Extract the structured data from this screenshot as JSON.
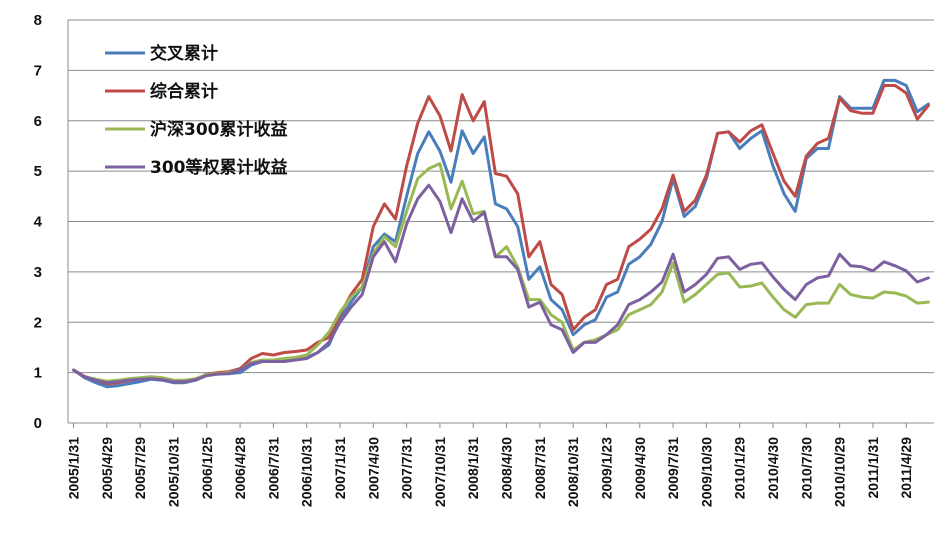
{
  "chart_data": {
    "type": "line",
    "title": "",
    "xlabel": "",
    "ylabel": "",
    "ylim": [
      0,
      8
    ],
    "yticks": [
      0,
      1,
      2,
      3,
      4,
      5,
      6,
      7,
      8
    ],
    "grid": true,
    "legend_position": "top-left",
    "tick_labels": [
      "2005/1/31",
      "2005/4/29",
      "2005/7/29",
      "2005/10/31",
      "2006/1/25",
      "2006/4/28",
      "2006/7/31",
      "2006/10/31",
      "2007/1/31",
      "2007/4/30",
      "2007/7/31",
      "2007/10/31",
      "2008/1/31",
      "2008/4/30",
      "2008/7/31",
      "2008/10/31",
      "2009/1/23",
      "2009/4/30",
      "2009/7/31",
      "2009/10/30",
      "2010/1/29",
      "2010/4/30",
      "2010/7/30",
      "2010/10/29",
      "2011/1/31",
      "2011/4/29"
    ],
    "x": [
      "2005/1",
      "2005/2",
      "2005/3",
      "2005/4",
      "2005/5",
      "2005/6",
      "2005/7",
      "2005/8",
      "2005/9",
      "2005/10",
      "2005/11",
      "2005/12",
      "2006/1",
      "2006/2",
      "2006/3",
      "2006/4",
      "2006/5",
      "2006/6",
      "2006/7",
      "2006/8",
      "2006/9",
      "2006/10",
      "2006/11",
      "2006/12",
      "2007/1",
      "2007/2",
      "2007/3",
      "2007/4",
      "2007/5",
      "2007/6",
      "2007/7",
      "2007/8",
      "2007/9",
      "2007/10",
      "2007/11",
      "2007/12",
      "2008/1",
      "2008/2",
      "2008/3",
      "2008/4",
      "2008/5",
      "2008/6",
      "2008/7",
      "2008/8",
      "2008/9",
      "2008/10",
      "2008/11",
      "2008/12",
      "2009/1",
      "2009/2",
      "2009/3",
      "2009/4",
      "2009/5",
      "2009/6",
      "2009/7",
      "2009/8",
      "2009/9",
      "2009/10",
      "2009/11",
      "2009/12",
      "2010/1",
      "2010/2",
      "2010/3",
      "2010/4",
      "2010/5",
      "2010/6",
      "2010/7",
      "2010/8",
      "2010/9",
      "2010/10",
      "2010/11",
      "2010/12",
      "2011/1",
      "2011/2",
      "2011/3",
      "2011/4",
      "2011/5",
      "2011/6"
    ],
    "series": [
      {
        "name": "交叉累计",
        "color": "#4a7ebb",
        "values": [
          1.05,
          0.9,
          0.8,
          0.72,
          0.74,
          0.78,
          0.82,
          0.87,
          0.85,
          0.8,
          0.8,
          0.85,
          0.95,
          0.98,
          0.98,
          1.0,
          1.15,
          1.22,
          1.25,
          1.25,
          1.28,
          1.3,
          1.4,
          1.55,
          2.05,
          2.4,
          2.7,
          3.5,
          3.75,
          3.6,
          4.5,
          5.35,
          5.78,
          5.4,
          4.78,
          5.8,
          5.35,
          5.68,
          4.35,
          4.25,
          3.9,
          2.85,
          3.1,
          2.45,
          2.25,
          1.75,
          1.95,
          2.05,
          2.5,
          2.6,
          3.15,
          3.3,
          3.55,
          4.0,
          4.85,
          4.1,
          4.3,
          4.85,
          5.75,
          5.78,
          5.45,
          5.65,
          5.8,
          5.1,
          4.55,
          4.2,
          5.25,
          5.45,
          5.45,
          6.48,
          6.25,
          6.25,
          6.25,
          6.8,
          6.8,
          6.7,
          6.18,
          6.33
        ]
      },
      {
        "name": "综合累计",
        "color": "#be4b48",
        "values": [
          1.05,
          0.92,
          0.85,
          0.78,
          0.8,
          0.84,
          0.88,
          0.9,
          0.88,
          0.82,
          0.82,
          0.87,
          0.97,
          1.0,
          1.02,
          1.08,
          1.28,
          1.38,
          1.35,
          1.4,
          1.42,
          1.45,
          1.6,
          1.7,
          2.15,
          2.55,
          2.85,
          3.9,
          4.35,
          4.05,
          5.1,
          5.95,
          6.48,
          6.1,
          5.4,
          6.52,
          6.0,
          6.38,
          4.95,
          4.9,
          4.55,
          3.3,
          3.6,
          2.75,
          2.55,
          1.85,
          2.1,
          2.25,
          2.75,
          2.85,
          3.5,
          3.65,
          3.85,
          4.25,
          4.92,
          4.2,
          4.42,
          4.92,
          5.75,
          5.78,
          5.58,
          5.8,
          5.92,
          5.35,
          4.8,
          4.5,
          5.3,
          5.55,
          5.65,
          6.45,
          6.2,
          6.15,
          6.15,
          6.7,
          6.7,
          6.55,
          6.03,
          6.3
        ]
      },
      {
        "name": "沪深300累计收益",
        "color": "#98b954",
        "values": [
          1.05,
          0.92,
          0.87,
          0.83,
          0.85,
          0.88,
          0.9,
          0.92,
          0.9,
          0.85,
          0.85,
          0.88,
          0.96,
          0.98,
          1.0,
          1.05,
          1.2,
          1.25,
          1.25,
          1.28,
          1.3,
          1.35,
          1.55,
          1.8,
          2.2,
          2.5,
          2.7,
          3.35,
          3.7,
          3.5,
          4.2,
          4.85,
          5.05,
          5.15,
          4.25,
          4.8,
          4.15,
          4.2,
          3.3,
          3.5,
          3.1,
          2.45,
          2.45,
          2.15,
          2.0,
          1.45,
          1.6,
          1.65,
          1.75,
          1.85,
          2.15,
          2.25,
          2.35,
          2.6,
          3.18,
          2.4,
          2.55,
          2.75,
          2.95,
          2.98,
          2.7,
          2.72,
          2.78,
          2.5,
          2.25,
          2.1,
          2.35,
          2.38,
          2.38,
          2.75,
          2.55,
          2.5,
          2.48,
          2.6,
          2.58,
          2.52,
          2.38,
          2.4
        ]
      },
      {
        "name": "300等权累计收益",
        "color": "#7d60a0",
        "values": [
          1.05,
          0.92,
          0.85,
          0.8,
          0.82,
          0.85,
          0.87,
          0.88,
          0.86,
          0.82,
          0.82,
          0.86,
          0.94,
          0.97,
          0.98,
          1.05,
          1.18,
          1.22,
          1.22,
          1.22,
          1.25,
          1.28,
          1.4,
          1.6,
          2.0,
          2.3,
          2.55,
          3.3,
          3.6,
          3.2,
          3.95,
          4.45,
          4.72,
          4.4,
          3.78,
          4.45,
          4.0,
          4.18,
          3.3,
          3.3,
          3.05,
          2.3,
          2.4,
          1.95,
          1.85,
          1.4,
          1.6,
          1.6,
          1.75,
          1.95,
          2.35,
          2.45,
          2.6,
          2.8,
          3.35,
          2.6,
          2.75,
          2.95,
          3.27,
          3.3,
          3.05,
          3.15,
          3.18,
          2.9,
          2.65,
          2.45,
          2.75,
          2.88,
          2.92,
          3.35,
          3.12,
          3.1,
          3.02,
          3.2,
          3.12,
          3.02,
          2.8,
          2.88
        ]
      }
    ]
  }
}
